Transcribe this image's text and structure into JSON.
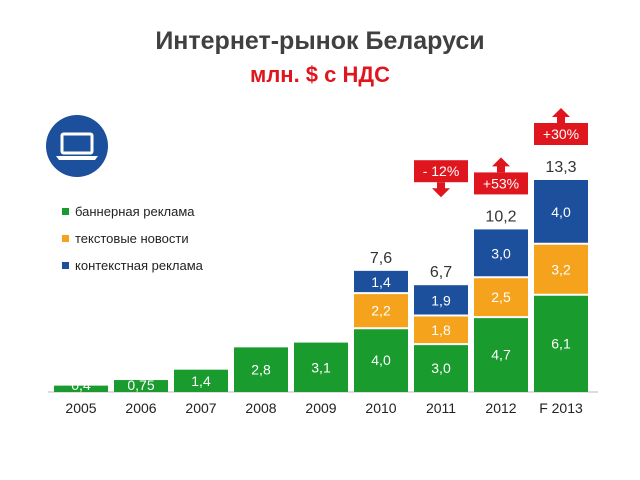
{
  "title": "Интернет-рынок Беларуси",
  "subtitle": "млн. $ с НДС",
  "logo_icon": "laptop-icon",
  "colors": {
    "banner": "#1a9b2e",
    "text_news": "#f5a21c",
    "contextual": "#1c4f9c",
    "growth": "#e0161e",
    "decline": "#e0161e"
  },
  "chart_data": {
    "type": "bar",
    "stacked": true,
    "categories": [
      "2005",
      "2006",
      "2007",
      "2008",
      "2009",
      "2010",
      "2011",
      "2012",
      "F 2013"
    ],
    "series": [
      {
        "name": "баннерная реклама",
        "values": [
          0.4,
          0.75,
          1.4,
          2.8,
          3.1,
          4.0,
          3.0,
          4.7,
          6.1
        ],
        "labels": [
          "0,4",
          "0,75",
          "1,4",
          "2,8",
          "3,1",
          "4,0",
          "3,0",
          "4,7",
          "6,1"
        ]
      },
      {
        "name": "текстовые новости",
        "values": [
          null,
          null,
          null,
          null,
          null,
          2.2,
          1.8,
          2.5,
          3.2
        ],
        "labels": [
          "",
          "",
          "",
          "",
          "",
          "2,2",
          "1,8",
          "2,5",
          "3,2"
        ]
      },
      {
        "name": "контекстная реклама",
        "values": [
          null,
          null,
          null,
          null,
          null,
          1.4,
          1.9,
          3.0,
          4.0
        ],
        "labels": [
          "",
          "",
          "",
          "",
          "",
          "1,4",
          "1,9",
          "3,0",
          "4,0"
        ]
      }
    ],
    "totals": [
      "",
      "",
      "",
      "",
      "",
      "7,6",
      "6,7",
      "10,2",
      "13,3"
    ],
    "changes": [
      {
        "category": "2011",
        "label": "- 12%",
        "direction": "down"
      },
      {
        "category": "2012",
        "label": "+53%",
        "direction": "up"
      },
      {
        "category": "F 2013",
        "label": "+30%",
        "direction": "up"
      }
    ],
    "ylim": [
      0,
      13.3
    ],
    "grid": false,
    "legend_position": "left"
  }
}
